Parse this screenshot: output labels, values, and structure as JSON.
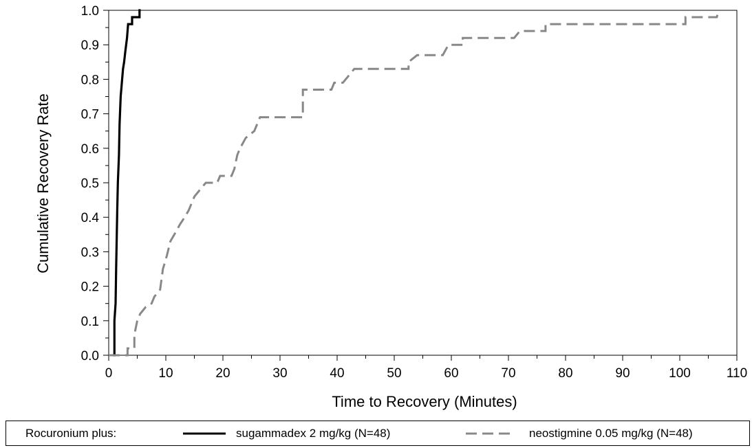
{
  "chart_data": {
    "type": "line",
    "xlabel": "Time to Recovery (Minutes)",
    "ylabel": "Cumulative Recovery Rate",
    "xlim": [
      0,
      110
    ],
    "ylim": [
      0,
      1.0
    ],
    "x_ticks": [
      "0",
      "10",
      "20",
      "30",
      "40",
      "50",
      "60",
      "70",
      "80",
      "90",
      "100",
      "110"
    ],
    "y_ticks": [
      "0.0",
      "0.1",
      "0.2",
      "0.3",
      "0.4",
      "0.5",
      "0.6",
      "0.7",
      "0.8",
      "0.9",
      "1.0"
    ],
    "grid": false,
    "legend_position": "bottom",
    "legend_prefix": "Rocuronium plus:",
    "series": [
      {
        "name": "sugammadex 2 mg/kg (N=48)",
        "style": "solid",
        "color": "#000000",
        "points": [
          [
            0.8,
            0
          ],
          [
            1.0,
            0
          ],
          [
            1.0,
            0.1
          ],
          [
            1.2,
            0.15
          ],
          [
            1.3,
            0.25
          ],
          [
            1.5,
            0.42
          ],
          [
            1.6,
            0.5
          ],
          [
            1.8,
            0.58
          ],
          [
            1.9,
            0.67
          ],
          [
            2.1,
            0.75
          ],
          [
            2.3,
            0.79
          ],
          [
            2.5,
            0.83
          ],
          [
            2.7,
            0.85
          ],
          [
            2.9,
            0.88
          ],
          [
            3.2,
            0.92
          ],
          [
            3.4,
            0.96
          ],
          [
            4.1,
            0.96
          ],
          [
            4.1,
            0.98
          ],
          [
            5.4,
            0.98
          ],
          [
            5.4,
            1.0
          ],
          [
            5.6,
            1.0
          ]
        ]
      },
      {
        "name": "neostigmine 0.05 mg/kg (N=48)",
        "style": "dashed",
        "color": "#888888",
        "points": [
          [
            0,
            0
          ],
          [
            3.3,
            0
          ],
          [
            3.3,
            0.02
          ],
          [
            4.5,
            0.02
          ],
          [
            4.5,
            0.06
          ],
          [
            5.0,
            0.1
          ],
          [
            5.5,
            0.12
          ],
          [
            6.5,
            0.14
          ],
          [
            7.5,
            0.15
          ],
          [
            8.0,
            0.17
          ],
          [
            9.0,
            0.19
          ],
          [
            9.5,
            0.25
          ],
          [
            10.2,
            0.29
          ],
          [
            10.8,
            0.33
          ],
          [
            11.5,
            0.35
          ],
          [
            12.5,
            0.38
          ],
          [
            13.3,
            0.4
          ],
          [
            14.0,
            0.42
          ],
          [
            15.0,
            0.46
          ],
          [
            16.0,
            0.48
          ],
          [
            17.0,
            0.5
          ],
          [
            19.0,
            0.5
          ],
          [
            19.5,
            0.52
          ],
          [
            21.5,
            0.52
          ],
          [
            22.0,
            0.54
          ],
          [
            22.5,
            0.58
          ],
          [
            23.0,
            0.6
          ],
          [
            24.0,
            0.63
          ],
          [
            25.5,
            0.65
          ],
          [
            26.5,
            0.69
          ],
          [
            34.0,
            0.69
          ],
          [
            34.0,
            0.77
          ],
          [
            39.0,
            0.77
          ],
          [
            39.5,
            0.79
          ],
          [
            41.0,
            0.79
          ],
          [
            42.0,
            0.81
          ],
          [
            43.0,
            0.83
          ],
          [
            52.5,
            0.83
          ],
          [
            52.5,
            0.85
          ],
          [
            54.0,
            0.87
          ],
          [
            58.5,
            0.87
          ],
          [
            59.5,
            0.9
          ],
          [
            62.0,
            0.9
          ],
          [
            62.0,
            0.92
          ],
          [
            71.0,
            0.92
          ],
          [
            72.0,
            0.94
          ],
          [
            76.5,
            0.94
          ],
          [
            76.5,
            0.96
          ],
          [
            101.0,
            0.96
          ],
          [
            101.0,
            0.98
          ],
          [
            106.5,
            0.98
          ],
          [
            106.8,
            1.0
          ]
        ]
      }
    ]
  }
}
